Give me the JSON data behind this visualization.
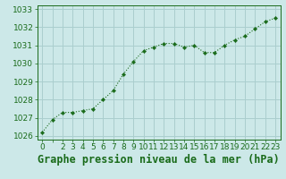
{
  "x": [
    0,
    1,
    2,
    3,
    4,
    5,
    6,
    7,
    8,
    9,
    10,
    11,
    12,
    13,
    14,
    15,
    16,
    17,
    18,
    19,
    20,
    21,
    22,
    23
  ],
  "y": [
    1026.2,
    1026.9,
    1027.3,
    1027.3,
    1027.4,
    1027.5,
    1028.0,
    1028.5,
    1029.4,
    1030.1,
    1030.7,
    1030.9,
    1031.1,
    1031.1,
    1030.9,
    1031.0,
    1030.6,
    1030.6,
    1031.0,
    1031.3,
    1031.5,
    1031.9,
    1032.3,
    1032.5
  ],
  "line_color": "#1a6b1a",
  "marker_color": "#1a6b1a",
  "bg_color": "#cce8e8",
  "grid_color": "#aacece",
  "title": "Graphe pression niveau de la mer (hPa)",
  "ylim_min": 1025.8,
  "ylim_max": 1033.2,
  "xlim_min": -0.5,
  "xlim_max": 23.5,
  "ytick_values": [
    1026,
    1027,
    1028,
    1029,
    1030,
    1031,
    1032,
    1033
  ],
  "xtick_labels": [
    "0",
    "",
    "2",
    "3",
    "4",
    "5",
    "6",
    "7",
    "8",
    "9",
    "10",
    "11",
    "12",
    "13",
    "14",
    "15",
    "16",
    "17",
    "18",
    "19",
    "20",
    "21",
    "22",
    "23"
  ],
  "title_fontsize": 8.5,
  "tick_fontsize": 6.5,
  "title_color": "#1a6b1a",
  "tick_color": "#1a6b1a",
  "spine_color": "#1a6b1a"
}
